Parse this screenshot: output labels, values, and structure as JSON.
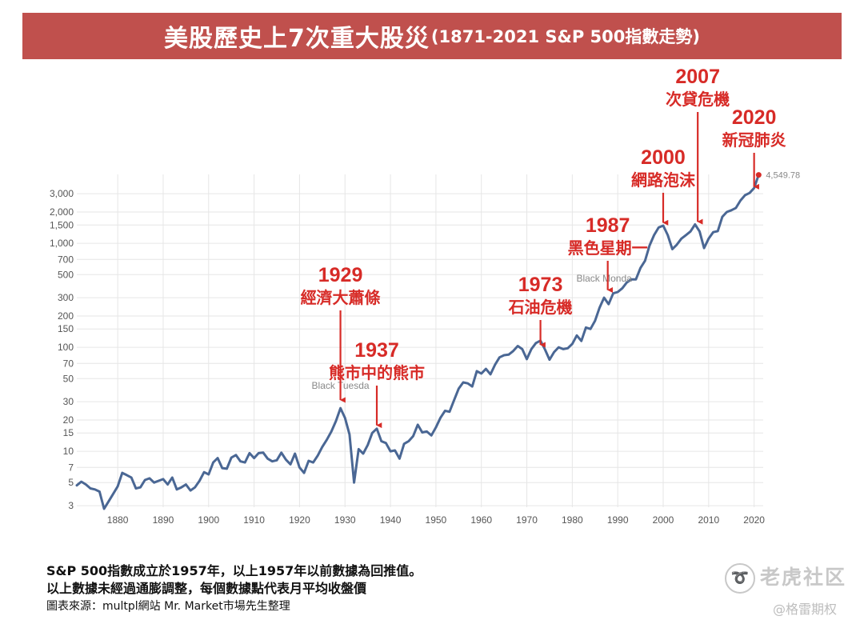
{
  "header": {
    "title": "美股歷史上7次重大股災",
    "subtitle": "(1871-2021 S&P 500指數走勢)"
  },
  "colors": {
    "banner": "#c0504d",
    "line": "#4a6794",
    "annotation_red": "#d72b27",
    "grid": "#e6e6e6"
  },
  "chart_data": {
    "type": "line",
    "title": "",
    "xlabel": "",
    "ylabel": "",
    "yscale": "log",
    "xlim": [
      1871,
      2022
    ],
    "ylim": [
      2.9,
      4600
    ],
    "grid": true,
    "x_ticks": [
      1880,
      1890,
      1900,
      1910,
      1920,
      1930,
      1940,
      1950,
      1960,
      1970,
      1980,
      1990,
      2000,
      2010,
      2020
    ],
    "y_ticks": [
      3,
      5,
      7,
      10,
      15,
      20,
      30,
      50,
      70,
      100,
      150,
      200,
      300,
      500,
      700,
      1000,
      1500,
      2000,
      3000
    ],
    "y_tick_labels": [
      "3",
      "5",
      "7",
      "10",
      "15",
      "20",
      "30",
      "50",
      "70",
      "100",
      "150",
      "200",
      "300",
      "500",
      "700",
      "1,000",
      "1,500",
      "2,000",
      "3,000"
    ],
    "series": [
      {
        "x": [
          1871,
          1872,
          1873,
          1874,
          1875,
          1876,
          1877,
          1878,
          1879,
          1880,
          1881,
          1882,
          1883,
          1884,
          1885,
          1886,
          1887,
          1888,
          1889,
          1890,
          1891,
          1892,
          1893,
          1894,
          1895,
          1896,
          1897,
          1898,
          1899,
          1900,
          1901,
          1902,
          1903,
          1904,
          1905,
          1906,
          1907,
          1908,
          1909,
          1910,
          1911,
          1912,
          1913,
          1914,
          1915,
          1916,
          1917,
          1918,
          1919,
          1920,
          1921,
          1922,
          1923,
          1924,
          1925,
          1926,
          1927,
          1928,
          1929,
          1930,
          1931,
          1932,
          1933,
          1934,
          1935,
          1936,
          1937,
          1938,
          1939,
          1940,
          1941,
          1942,
          1943,
          1944,
          1945,
          1946,
          1947,
          1948,
          1949,
          1950,
          1951,
          1952,
          1953,
          1954,
          1955,
          1956,
          1957,
          1958,
          1959,
          1960,
          1961,
          1962,
          1963,
          1964,
          1965,
          1966,
          1967,
          1968,
          1969,
          1970,
          1971,
          1972,
          1973,
          1974,
          1975,
          1976,
          1977,
          1978,
          1979,
          1980,
          1981,
          1982,
          1983,
          1984,
          1985,
          1986,
          1987,
          1988,
          1989,
          1990,
          1991,
          1992,
          1993,
          1994,
          1995,
          1996,
          1997,
          1998,
          1999,
          2000,
          2001,
          2002,
          2003,
          2004,
          2005,
          2006,
          2007,
          2008,
          2009,
          2010,
          2011,
          2012,
          2013,
          2014,
          2015,
          2016,
          2017,
          2018,
          2019,
          2020,
          2021
        ],
        "values": [
          4.7,
          5.1,
          4.8,
          4.4,
          4.3,
          4.1,
          2.8,
          3.3,
          3.9,
          4.6,
          6.2,
          5.9,
          5.6,
          4.4,
          4.5,
          5.3,
          5.5,
          5.0,
          5.2,
          5.4,
          4.8,
          5.6,
          4.3,
          4.5,
          4.8,
          4.2,
          4.5,
          5.2,
          6.3,
          6.0,
          7.8,
          8.6,
          6.9,
          6.8,
          8.7,
          9.2,
          8.0,
          7.8,
          9.6,
          8.6,
          9.6,
          9.7,
          8.5,
          8.0,
          8.2,
          9.7,
          8.3,
          7.5,
          9.5,
          7.0,
          6.2,
          8.1,
          7.8,
          9.1,
          11.0,
          12.9,
          15.5,
          19.5,
          26.0,
          21.0,
          14.5,
          5.0,
          10.5,
          9.5,
          11.5,
          15.0,
          16.5,
          12.5,
          12.0,
          10.0,
          10.2,
          8.5,
          11.8,
          12.5,
          14.0,
          18.0,
          15.2,
          15.5,
          14.2,
          17.0,
          21.0,
          24.5,
          24.0,
          31.0,
          40.0,
          46.0,
          45.0,
          42.0,
          59.0,
          56.0,
          62.0,
          55.0,
          68.0,
          80.0,
          84.0,
          85.0,
          92.0,
          103.0,
          96.0,
          77.0,
          96.0,
          110.0,
          116.0,
          95.0,
          76.0,
          90.0,
          100.0,
          96.0,
          98.0,
          108.0,
          130.0,
          115.0,
          155.0,
          150.0,
          180.0,
          240.0,
          300.0,
          260.0,
          330.0,
          340.0,
          370.0,
          420.0,
          450.0,
          450.0,
          580.0,
          680.0,
          950.0,
          1200.0,
          1420.0,
          1480.0,
          1200.0,
          880.0,
          970.0,
          1110.0,
          1200.0,
          1300.0,
          1520.0,
          1300.0,
          900.0,
          1110.0,
          1280.0,
          1310.0,
          1800.0,
          2000.0,
          2080.0,
          2190.0,
          2580.0,
          2900.0,
          3050.0,
          3400.0,
          4549.78
        ]
      }
    ],
    "last_value_label": "4,549.78",
    "annotations": [
      {
        "year": "1929",
        "label": "經濟大蕭條",
        "x": 1929,
        "y": 28
      },
      {
        "year": "1937",
        "label": "熊市中的熊市",
        "x": 1937,
        "y": 16
      },
      {
        "year": "1973",
        "label": "石油危機",
        "x": 1973,
        "y": 95
      },
      {
        "year": "1987",
        "label": "黑色星期一",
        "x": 1987.8,
        "y": 320
      },
      {
        "year": "2000",
        "label": "網路泡沫",
        "x": 2000,
        "y": 1420
      },
      {
        "year": "2007",
        "label": "次貸危機",
        "x": 2007.6,
        "y": 1450
      },
      {
        "year": "2020",
        "label": "新冠肺炎",
        "x": 2020,
        "y": 3150
      }
    ],
    "chart_notes": [
      {
        "text": "Black Tuesda",
        "x": 1929,
        "y": 40
      },
      {
        "text": "Black Monda",
        "x": 1987,
        "y": 430
      }
    ]
  },
  "footer": {
    "note1": "S&P 500指數成立於1957年，以上1957年以前數據為回推值。",
    "note2": "以上數據未經過通膨調整，每個數據點代表月平均收盤價",
    "source": "圖表來源：multpl網站  Mr. Market市場先生整理"
  },
  "watermark": {
    "text": "老虎社区",
    "sub": "@格雷期权"
  }
}
